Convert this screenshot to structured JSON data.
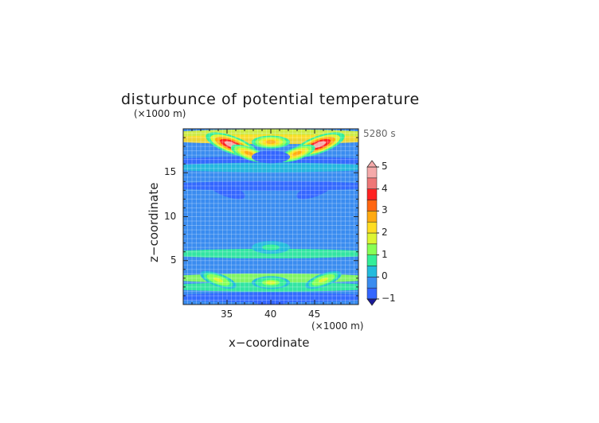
{
  "chart_data": {
    "type": "heatmap",
    "title": "disturbunce of potential temperature",
    "xlabel": "x−coordinate",
    "ylabel": "z−coordinate",
    "x_unit": "(×1000 m)",
    "z_unit": "(×1000 m)",
    "time_label": "5280 s",
    "x_ticks": [
      "35",
      "40",
      "45"
    ],
    "x_tick_values": [
      35,
      40,
      45
    ],
    "z_ticks": [
      "5",
      "10",
      "15"
    ],
    "z_tick_values": [
      5,
      10,
      15
    ],
    "xlim": [
      30,
      50
    ],
    "zlim": [
      0,
      20
    ],
    "grid": true,
    "colorbar": {
      "min": -1,
      "max": 5,
      "step": 0.5,
      "tick_labels": [
        "−1",
        "0",
        "1",
        "2",
        "3",
        "4",
        "5"
      ],
      "tick_values": [
        -1,
        0,
        1,
        2,
        3,
        4,
        5
      ],
      "extend": "both",
      "colors": [
        "#2222dd",
        "#3366ff",
        "#3a8cf0",
        "#22bbdd",
        "#33ee99",
        "#88ff55",
        "#ddf533",
        "#ffdd22",
        "#ffaa11",
        "#ff6611",
        "#ff2222",
        "#ee7777",
        "#f5aaaa"
      ]
    },
    "features": [
      {
        "x": 35.5,
        "z": 18.2,
        "value": 4.5
      },
      {
        "x": 45.5,
        "z": 18.2,
        "value": 4.5
      },
      {
        "x": 40,
        "z": 18.5,
        "value": 2.5
      },
      {
        "x": 37.5,
        "z": 17.2,
        "value": 2.8
      },
      {
        "x": 43,
        "z": 17.2,
        "value": 2.8
      },
      {
        "x": 40,
        "z": 16.8,
        "value": -1
      },
      {
        "x": 35,
        "z": 13,
        "value": -0.8
      },
      {
        "x": 45,
        "z": 13,
        "value": -0.8
      },
      {
        "x": 40,
        "z": 6.5,
        "value": 0.8
      },
      {
        "x": 40,
        "z": 2.5,
        "value": 1.5
      },
      {
        "x": 34,
        "z": 2.8,
        "value": 1.8
      },
      {
        "x": 46,
        "z": 2.8,
        "value": 1.8
      },
      {
        "x": 40,
        "z": 0.6,
        "value": -0.8
      }
    ]
  }
}
